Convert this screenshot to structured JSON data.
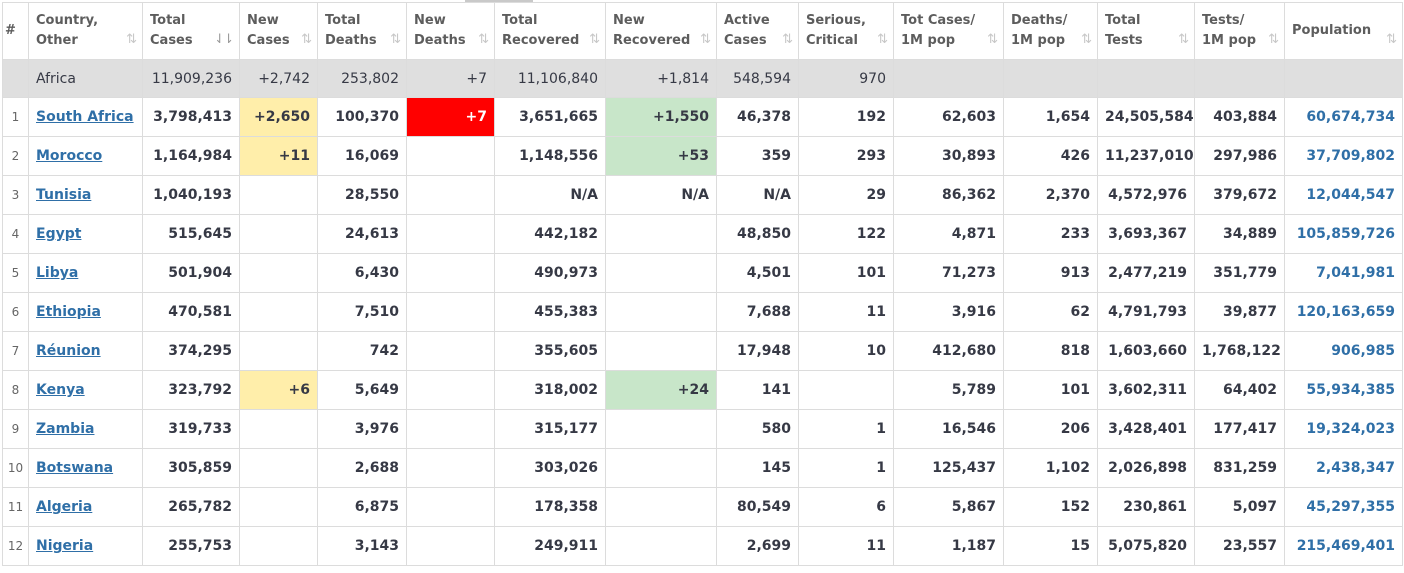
{
  "colors": {
    "new_cases_bg": "#ffeeaa",
    "new_deaths_bg": "#ff0000",
    "new_recovered_bg": "#c8e6c9",
    "link": "#2f6fa7"
  },
  "headers": [
    {
      "line1": "#",
      "line2": "",
      "sort": ""
    },
    {
      "line1": "Country,",
      "line2": "Other",
      "sort": "⇅"
    },
    {
      "line1": "Total",
      "line2": "Cases",
      "sort": "⇃⇂"
    },
    {
      "line1": "New",
      "line2": "Cases",
      "sort": "⇅"
    },
    {
      "line1": "Total",
      "line2": "Deaths",
      "sort": "⇅"
    },
    {
      "line1": "New",
      "line2": "Deaths",
      "sort": "⇅"
    },
    {
      "line1": "Total",
      "line2": "Recovered",
      "sort": "⇅"
    },
    {
      "line1": "New",
      "line2": "Recovered",
      "sort": "⇅"
    },
    {
      "line1": "Active",
      "line2": "Cases",
      "sort": "⇅"
    },
    {
      "line1": "Serious,",
      "line2": "Critical",
      "sort": "⇅"
    },
    {
      "line1": "Tot Cases/",
      "line2": "1M pop",
      "sort": "⇅"
    },
    {
      "line1": "Deaths/",
      "line2": "1M pop",
      "sort": "⇅"
    },
    {
      "line1": "Total",
      "line2": "Tests",
      "sort": "⇅"
    },
    {
      "line1": "Tests/",
      "line2": "1M pop",
      "sort": "⇅"
    },
    {
      "line1": "Population",
      "line2": "",
      "sort": "⇅"
    }
  ],
  "total_row": {
    "rank": "",
    "country": "Africa",
    "total_cases": "11,909,236",
    "new_cases": "+2,742",
    "total_deaths": "253,802",
    "new_deaths": "+7",
    "total_recovered": "11,106,840",
    "new_recovered": "+1,814",
    "active": "548,594",
    "serious": "970",
    "cases_per_m": "",
    "deaths_per_m": "",
    "total_tests": "",
    "tests_per_m": "",
    "population": ""
  },
  "rows": [
    {
      "rank": "1",
      "country": "South Africa",
      "total_cases": "3,798,413",
      "new_cases": "+2,650",
      "total_deaths": "100,370",
      "new_deaths": "+7",
      "total_recovered": "3,651,665",
      "new_recovered": "+1,550",
      "active": "46,378",
      "serious": "192",
      "cases_per_m": "62,603",
      "deaths_per_m": "1,654",
      "total_tests": "24,505,584",
      "tests_per_m": "403,884",
      "population": "60,674,734"
    },
    {
      "rank": "2",
      "country": "Morocco",
      "total_cases": "1,164,984",
      "new_cases": "+11",
      "total_deaths": "16,069",
      "new_deaths": "",
      "total_recovered": "1,148,556",
      "new_recovered": "+53",
      "active": "359",
      "serious": "293",
      "cases_per_m": "30,893",
      "deaths_per_m": "426",
      "total_tests": "11,237,010",
      "tests_per_m": "297,986",
      "population": "37,709,802"
    },
    {
      "rank": "3",
      "country": "Tunisia",
      "total_cases": "1,040,193",
      "new_cases": "",
      "total_deaths": "28,550",
      "new_deaths": "",
      "total_recovered": "N/A",
      "new_recovered": "N/A",
      "active": "N/A",
      "serious": "29",
      "cases_per_m": "86,362",
      "deaths_per_m": "2,370",
      "total_tests": "4,572,976",
      "tests_per_m": "379,672",
      "population": "12,044,547"
    },
    {
      "rank": "4",
      "country": "Egypt",
      "total_cases": "515,645",
      "new_cases": "",
      "total_deaths": "24,613",
      "new_deaths": "",
      "total_recovered": "442,182",
      "new_recovered": "",
      "active": "48,850",
      "serious": "122",
      "cases_per_m": "4,871",
      "deaths_per_m": "233",
      "total_tests": "3,693,367",
      "tests_per_m": "34,889",
      "population": "105,859,726"
    },
    {
      "rank": "5",
      "country": "Libya",
      "total_cases": "501,904",
      "new_cases": "",
      "total_deaths": "6,430",
      "new_deaths": "",
      "total_recovered": "490,973",
      "new_recovered": "",
      "active": "4,501",
      "serious": "101",
      "cases_per_m": "71,273",
      "deaths_per_m": "913",
      "total_tests": "2,477,219",
      "tests_per_m": "351,779",
      "population": "7,041,981"
    },
    {
      "rank": "6",
      "country": "Ethiopia",
      "total_cases": "470,581",
      "new_cases": "",
      "total_deaths": "7,510",
      "new_deaths": "",
      "total_recovered": "455,383",
      "new_recovered": "",
      "active": "7,688",
      "serious": "11",
      "cases_per_m": "3,916",
      "deaths_per_m": "62",
      "total_tests": "4,791,793",
      "tests_per_m": "39,877",
      "population": "120,163,659"
    },
    {
      "rank": "7",
      "country": "Réunion",
      "total_cases": "374,295",
      "new_cases": "",
      "total_deaths": "742",
      "new_deaths": "",
      "total_recovered": "355,605",
      "new_recovered": "",
      "active": "17,948",
      "serious": "10",
      "cases_per_m": "412,680",
      "deaths_per_m": "818",
      "total_tests": "1,603,660",
      "tests_per_m": "1,768,122",
      "population": "906,985"
    },
    {
      "rank": "8",
      "country": "Kenya",
      "total_cases": "323,792",
      "new_cases": "+6",
      "total_deaths": "5,649",
      "new_deaths": "",
      "total_recovered": "318,002",
      "new_recovered": "+24",
      "active": "141",
      "serious": "",
      "cases_per_m": "5,789",
      "deaths_per_m": "101",
      "total_tests": "3,602,311",
      "tests_per_m": "64,402",
      "population": "55,934,385"
    },
    {
      "rank": "9",
      "country": "Zambia",
      "total_cases": "319,733",
      "new_cases": "",
      "total_deaths": "3,976",
      "new_deaths": "",
      "total_recovered": "315,177",
      "new_recovered": "",
      "active": "580",
      "serious": "1",
      "cases_per_m": "16,546",
      "deaths_per_m": "206",
      "total_tests": "3,428,401",
      "tests_per_m": "177,417",
      "population": "19,324,023"
    },
    {
      "rank": "10",
      "country": "Botswana",
      "total_cases": "305,859",
      "new_cases": "",
      "total_deaths": "2,688",
      "new_deaths": "",
      "total_recovered": "303,026",
      "new_recovered": "",
      "active": "145",
      "serious": "1",
      "cases_per_m": "125,437",
      "deaths_per_m": "1,102",
      "total_tests": "2,026,898",
      "tests_per_m": "831,259",
      "population": "2,438,347"
    },
    {
      "rank": "11",
      "country": "Algeria",
      "total_cases": "265,782",
      "new_cases": "",
      "total_deaths": "6,875",
      "new_deaths": "",
      "total_recovered": "178,358",
      "new_recovered": "",
      "active": "80,549",
      "serious": "6",
      "cases_per_m": "5,867",
      "deaths_per_m": "152",
      "total_tests": "230,861",
      "tests_per_m": "5,097",
      "population": "45,297,355"
    },
    {
      "rank": "12",
      "country": "Nigeria",
      "total_cases": "255,753",
      "new_cases": "",
      "total_deaths": "3,143",
      "new_deaths": "",
      "total_recovered": "249,911",
      "new_recovered": "",
      "active": "2,699",
      "serious": "11",
      "cases_per_m": "1,187",
      "deaths_per_m": "15",
      "total_tests": "5,075,820",
      "tests_per_m": "23,557",
      "population": "215,469,401"
    }
  ]
}
